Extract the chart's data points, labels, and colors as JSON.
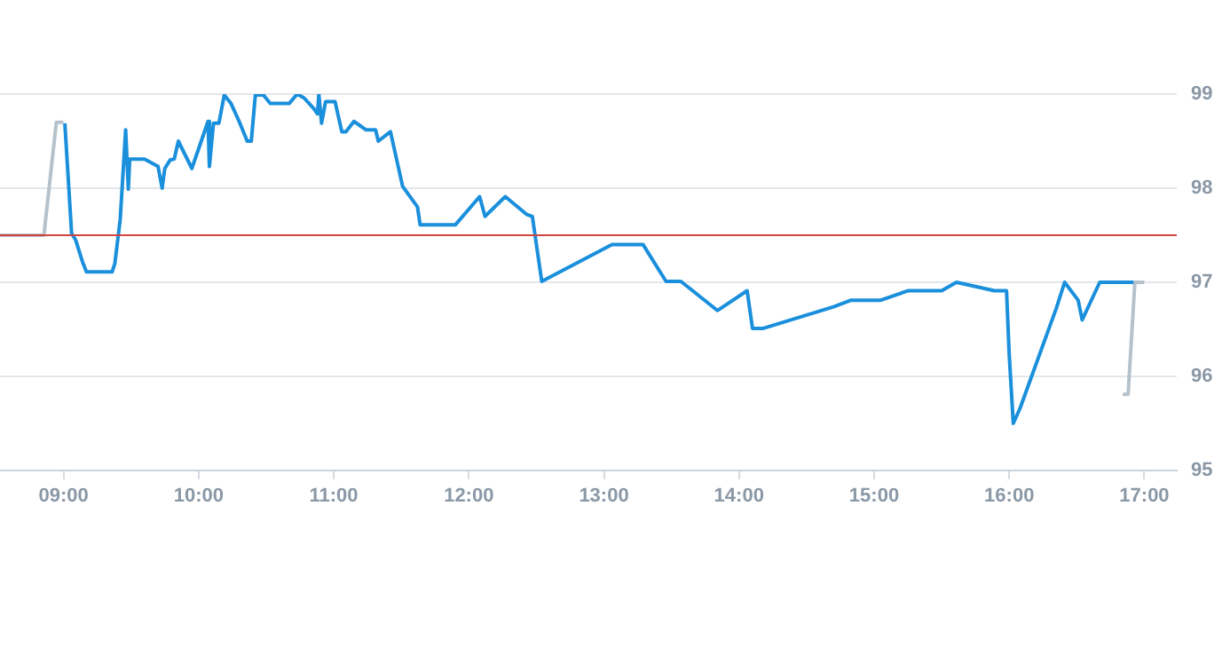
{
  "chart_data": {
    "type": "line",
    "series": [
      {
        "color": "#b5c2cc",
        "x": [
          8.53,
          8.855,
          8.947,
          9.0
        ],
        "values": [
          97.5,
          97.5,
          98.7,
          98.7
        ]
      },
      {
        "color": "#1a8fdc",
        "x": [
          9.01,
          9.06,
          9.09,
          9.14,
          9.17,
          9.36,
          9.38,
          9.42,
          9.46,
          9.48,
          9.49,
          9.6,
          9.7,
          9.73,
          9.75,
          9.79,
          9.82,
          9.85,
          9.95,
          10.07,
          10.08,
          10.11,
          10.15,
          10.19,
          10.24,
          10.3,
          10.36,
          10.39,
          10.42,
          10.48,
          10.53,
          10.67,
          10.73,
          10.78,
          10.85,
          10.88,
          10.89,
          10.91,
          10.94,
          11.01,
          11.06,
          11.09,
          11.15,
          11.24,
          11.31,
          11.33,
          11.42,
          11.51,
          11.62,
          11.64,
          11.9,
          12.08,
          12.12,
          12.27,
          12.43,
          12.47,
          12.54,
          13.06,
          13.29,
          13.46,
          13.57,
          13.84,
          14.06,
          14.1,
          14.18,
          14.7,
          14.83,
          15.05,
          15.25,
          15.5,
          15.61,
          15.89,
          15.98,
          16.0,
          16.03,
          16.08,
          16.35,
          16.41,
          16.51,
          16.54,
          16.67,
          16.92
        ],
        "values": [
          98.69,
          97.52,
          97.45,
          97.22,
          97.11,
          97.11,
          97.2,
          97.67,
          98.62,
          97.99,
          98.31,
          98.31,
          98.23,
          98.0,
          98.21,
          98.3,
          98.31,
          98.5,
          98.21,
          98.71,
          98.23,
          98.69,
          98.69,
          98.99,
          98.9,
          98.71,
          98.5,
          98.5,
          98.99,
          98.99,
          98.9,
          98.9,
          99.0,
          98.96,
          98.85,
          98.79,
          99.0,
          98.69,
          98.92,
          98.92,
          98.6,
          98.6,
          98.71,
          98.62,
          98.62,
          98.5,
          98.6,
          98.02,
          97.8,
          97.61,
          97.61,
          97.91,
          97.7,
          97.91,
          97.72,
          97.7,
          97.01,
          97.4,
          97.4,
          97.01,
          97.01,
          96.7,
          96.91,
          96.51,
          96.51,
          96.74,
          96.81,
          96.81,
          96.91,
          96.91,
          97.0,
          96.91,
          96.91,
          96.23,
          95.5,
          95.66,
          96.73,
          97.0,
          96.81,
          96.6,
          97.0,
          97.0
        ]
      },
      {
        "color": "#b5c2cc",
        "x": [
          16.84,
          16.88,
          16.93,
          17.0
        ],
        "values": [
          95.81,
          95.81,
          97.0,
          97.0
        ]
      }
    ],
    "xlim": [
      8.53,
      17.24
    ],
    "xticks": [
      {
        "value": 9,
        "label": "09:00"
      },
      {
        "value": 10,
        "label": "10:00"
      },
      {
        "value": 11,
        "label": "11:00"
      },
      {
        "value": 12,
        "label": "12:00"
      },
      {
        "value": 13,
        "label": "13:00"
      },
      {
        "value": 14,
        "label": "14:00"
      },
      {
        "value": 15,
        "label": "15:00"
      },
      {
        "value": 16,
        "label": "16:00"
      },
      {
        "value": 17,
        "label": "17:00"
      }
    ],
    "ylim": [
      95,
      99
    ],
    "yticks": [
      95,
      96,
      97,
      98,
      99
    ],
    "ref_lines": [
      {
        "axis": "y",
        "value": 97.5,
        "color": "#d0453f"
      }
    ],
    "grid": "y",
    "legend": false,
    "marker": "none",
    "line_style": "solid"
  }
}
